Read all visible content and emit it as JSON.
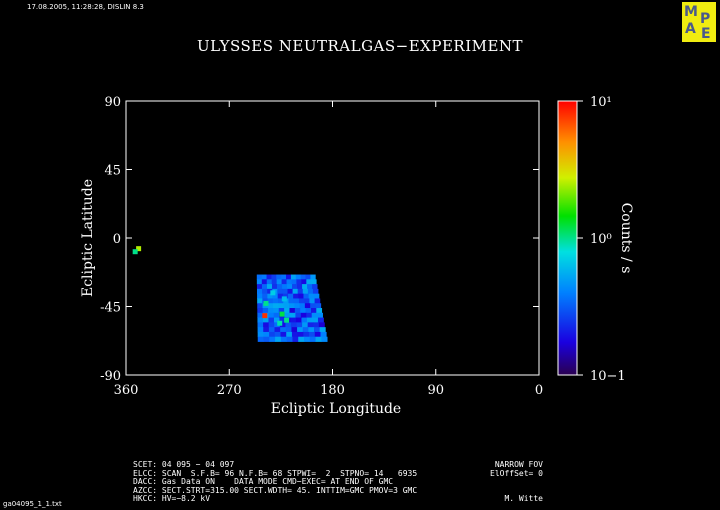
{
  "header": {
    "timestamp": "17.08.2005, 11:28:28, DISLIN 8.3",
    "title": "ULYSSES NEUTRALGAS−EXPERIMENT",
    "logo_text": "MPAE",
    "footer_file": "ga04095_1_1.txt"
  },
  "chart_data": {
    "type": "heatmap",
    "title": "ULYSSES NEUTRALGAS−EXPERIMENT",
    "xlabel": "Ecliptic Longitude",
    "ylabel": "Ecliptic Latitude",
    "xlim": [
      360,
      0
    ],
    "ylim": [
      -90,
      90
    ],
    "xticks": [
      360,
      270,
      180,
      90,
      0
    ],
    "yticks": [
      90,
      45,
      0,
      -45,
      -90
    ],
    "colorbar": {
      "label": "Counts / s",
      "scale": "log",
      "min": 0.1,
      "max": 10,
      "ticks": [
        "10−1",
        "10⁰",
        "10¹"
      ]
    },
    "sector": {
      "lon_start": 246,
      "lon_end": 195,
      "lat_top": -24,
      "lat_bottom": -68,
      "typical_value": 0.3
    },
    "points": [
      {
        "lon": 349,
        "lat": -7,
        "value": 2.5
      },
      {
        "lon": 352,
        "lat": -9,
        "value": 1.0
      },
      {
        "lon": 238,
        "lat": -43,
        "value": 1.0
      },
      {
        "lon": 224,
        "lat": -50,
        "value": 1.2
      },
      {
        "lon": 220,
        "lat": -54,
        "value": 1.0
      },
      {
        "lon": 226,
        "lat": -56,
        "value": 0.9
      },
      {
        "lon": 239,
        "lat": -51,
        "value": 8.0
      },
      {
        "lon": 232,
        "lat": -36,
        "value": 0.7
      },
      {
        "lon": 222,
        "lat": -40,
        "value": 0.6
      }
    ]
  },
  "info": {
    "line1_left": "SCET: 04 095 − 04 097",
    "line1_right": "NARROW FOV",
    "line2_left": "ELCC: SCAN  S.F.B= 96 N.F.B= 68 STPWI=  2  STPNO= 14   6935",
    "line2_right": "ElOffSet= 0",
    "line3": "DACC: Gas Data ON    DATA MODE CMD−EXEC= AT END OF GMC",
    "line4": "AZCC: SECT.STRT=315.00 SECT.WDTH= 45. INTTIM=GMC PMOV=3 GMC",
    "line5_left": "HKCC: HV=−8.2 kV",
    "line5_right": "M. Witte"
  }
}
